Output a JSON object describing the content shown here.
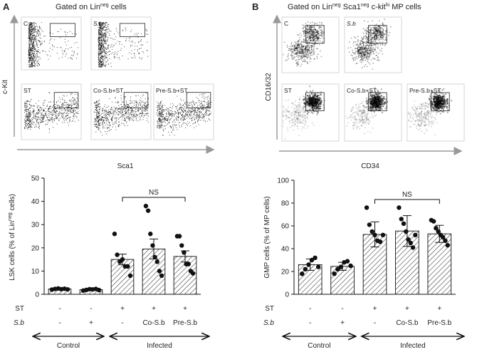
{
  "panels": {
    "A": {
      "letter": "A",
      "title": "Gated on Lin",
      "title_sup": "neg",
      "title_tail": " cells",
      "y_axis_label": "c-Kit",
      "x_axis_label": "Sca1",
      "plots": [
        {
          "label": "C",
          "italic": false,
          "style": "lsk-control"
        },
        {
          "label": "S.b",
          "italic": true,
          "style": "lsk-control"
        },
        {
          "label": "ST",
          "italic": false,
          "style": "lsk-infected"
        },
        {
          "label": "Co-S.b+ST",
          "italic": false,
          "style": "lsk-infected"
        },
        {
          "label": "Pre-S.b+ST",
          "italic": false,
          "style": "lsk-infected"
        }
      ]
    },
    "B": {
      "letter": "B",
      "title": "Gated on Lin",
      "title_sup1": "neg",
      "title_mid": " Sca1",
      "title_sup2": "neg",
      "title_mid2": " c-kit",
      "title_sup3": "hi",
      "title_tail": " MP cells",
      "y_axis_label": "CD16/32",
      "x_axis_label": "CD34",
      "plots": [
        {
          "label": "C",
          "italic": false,
          "style": "mp-control"
        },
        {
          "label": "S.b",
          "italic": true,
          "style": "mp-control"
        },
        {
          "label": "ST",
          "italic": false,
          "style": "mp-infected"
        },
        {
          "label": "Co-S.b+ST",
          "italic": false,
          "style": "mp-infected"
        },
        {
          "label": "Pre-S.b+ST",
          "italic": false,
          "style": "mp-infected"
        }
      ]
    }
  },
  "chart_data": [
    {
      "type": "bar",
      "ylabel": "LSK cells (% of Lin",
      "ylabel_sup": "neg",
      "ylabel_tail": " cells)",
      "ylim": [
        0,
        50
      ],
      "yticks": [
        0,
        10,
        20,
        30,
        40,
        50
      ],
      "categories": [
        "Control / -",
        "Control / S.b",
        "Infected / -",
        "Infected / Co-S.b",
        "Infected / Pre-S.b"
      ],
      "means": [
        2.3,
        2.0,
        15.0,
        19.5,
        16.3
      ],
      "errors": [
        0.3,
        0.3,
        2.3,
        4.3,
        2.4
      ],
      "points": [
        [
          2.0,
          2.3,
          2.5,
          2.2,
          2.4,
          2.1
        ],
        [
          1.6,
          1.9,
          2.2,
          2.1,
          2.3,
          1.8
        ],
        [
          26.0,
          17.0,
          14.0,
          15.0,
          12.0,
          12.0,
          8.0
        ],
        [
          38.0,
          36.0,
          26.0,
          21.0,
          16.0,
          14.0,
          10.0,
          8.0
        ],
        [
          25.0,
          25.0,
          21.0,
          18.0,
          13.0,
          13.0,
          10.0,
          9.0
        ]
      ],
      "significance": "NS"
    },
    {
      "type": "bar",
      "ylabel": "GMP cells (% of MP cells)",
      "ylim": [
        0,
        100
      ],
      "yticks": [
        0,
        20,
        40,
        60,
        80,
        100
      ],
      "categories": [
        "Control / -",
        "Control / S.b",
        "Infected / -",
        "Infected / Co-S.b",
        "Infected / Pre-S.b"
      ],
      "means": [
        26.0,
        24.5,
        52.5,
        55.5,
        53.0
      ],
      "errors": [
        5.0,
        3.5,
        11.0,
        13.5,
        7.5
      ],
      "points": [
        [
          18.0,
          22.0,
          26.0,
          30.0,
          32.0,
          24.0
        ],
        [
          18.0,
          22.0,
          24.0,
          28.0,
          29.0,
          25.0
        ],
        [
          76.0,
          61.0,
          55.0,
          52.0,
          47.0,
          46.0,
          52.0
        ],
        [
          76.0,
          66.0,
          62.0,
          55.0,
          48.0,
          45.0,
          41.0,
          52.0
        ],
        [
          65.0,
          64.0,
          58.0,
          55.0,
          52.0,
          50.0,
          47.0,
          43.0
        ]
      ],
      "significance": "NS"
    }
  ],
  "condition_table": {
    "row1_label": "ST",
    "row2_label": "S.b",
    "st_values": [
      "-",
      "-",
      "+",
      "+",
      "+"
    ],
    "sb_values": [
      "-",
      "+",
      "-",
      "Co-S.b",
      "Pre-S.b"
    ],
    "group_control": "Control",
    "group_infected": "Infected"
  },
  "colors": {
    "bar_fill": "#ffffff",
    "hatch": "#333333",
    "axis": "#888888",
    "dot": "#111111"
  }
}
